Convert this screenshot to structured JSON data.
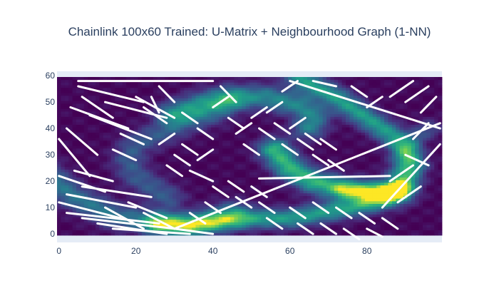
{
  "chart_data": {
    "type": "heatmap",
    "title": "Chainlink 100x60 Trained: U-Matrix + Neighbourhood Graph (1-NN)",
    "xlabel": "",
    "ylabel": "",
    "grid_size": [
      100,
      60
    ],
    "xlim": [
      -0.5,
      99.5
    ],
    "ylim": [
      -0.5,
      59.5
    ],
    "x_ticks": [
      0,
      20,
      40,
      60,
      80
    ],
    "y_ticks": [
      0,
      10,
      20,
      30,
      40,
      50,
      60
    ],
    "colorscale": "Viridis",
    "colors": {
      "low": "#440154",
      "mid": "#21918c",
      "high": "#fde725",
      "edge": "#ffffff",
      "plot_bg": "#e5ecf6",
      "text": "#2a3f5f"
    },
    "umatrix_ridges": [
      {
        "points": [
          [
            -6,
            26
          ],
          [
            4,
            14
          ],
          [
            14,
            7
          ],
          [
            26,
            4
          ],
          [
            34,
            4
          ],
          [
            40,
            6
          ],
          [
            45,
            8
          ]
        ],
        "width": 3.2,
        "peak": 0.42
      },
      {
        "points": [
          [
            26,
            4
          ],
          [
            34,
            3
          ],
          [
            44,
            5
          ],
          [
            52,
            6
          ],
          [
            60,
            6
          ],
          [
            68,
            8
          ],
          [
            76,
            10
          ],
          [
            84,
            13
          ],
          [
            90,
            20
          ],
          [
            92,
            26
          ],
          [
            90,
            32
          ],
          [
            86,
            38
          ],
          [
            80,
            44
          ],
          [
            76,
            48
          ],
          [
            72,
            52
          ],
          [
            68,
            55
          ],
          [
            64,
            58
          ],
          [
            60,
            63
          ]
        ],
        "width": 2.6,
        "peak": 0.6
      },
      {
        "points": [
          [
            30,
            46
          ],
          [
            38,
            50
          ],
          [
            46,
            52
          ],
          [
            54,
            52
          ],
          [
            62,
            49
          ],
          [
            66,
            45
          ],
          [
            65,
            41
          ]
        ],
        "width": 3.2,
        "peak": 0.5
      },
      {
        "points": [
          [
            44,
            50
          ],
          [
            40,
            46
          ],
          [
            32,
            42
          ],
          [
            26,
            38
          ],
          [
            20,
            34
          ],
          [
            18,
            28
          ],
          [
            20,
            22
          ],
          [
            24,
            18
          ],
          [
            28,
            14
          ]
        ],
        "width": 3.2,
        "peak": 0.3
      },
      {
        "points": [
          [
            56,
            32
          ],
          [
            60,
            25
          ],
          [
            66,
            20
          ],
          [
            74,
            17
          ],
          [
            82,
            16
          ],
          [
            88,
            16
          ]
        ],
        "width": 3.0,
        "peak": 0.72
      },
      {
        "points": [
          [
            74,
            17
          ],
          [
            82,
            16
          ],
          [
            86,
            16
          ],
          [
            88,
            17
          ]
        ],
        "width": 2.0,
        "peak": 0.28
      },
      {
        "points": [
          [
            88,
            24
          ],
          [
            92,
            36
          ],
          [
            96,
            40
          ]
        ],
        "width": 2.4,
        "peak": 0.25
      }
    ],
    "graph_edges": [
      [
        [
          5,
          56
        ],
        [
          22,
          50
        ]
      ],
      [
        [
          6,
          52
        ],
        [
          14,
          44
        ]
      ],
      [
        [
          3,
          48
        ],
        [
          18,
          40
        ]
      ],
      [
        [
          8,
          45
        ],
        [
          24,
          36
        ]
      ],
      [
        [
          12,
          50
        ],
        [
          28,
          44
        ]
      ],
      [
        [
          20,
          52
        ],
        [
          30,
          44
        ]
      ],
      [
        [
          2,
          40
        ],
        [
          10,
          30
        ]
      ],
      [
        [
          0,
          36
        ],
        [
          8,
          22
        ]
      ],
      [
        [
          4,
          24
        ],
        [
          14,
          20
        ]
      ],
      [
        [
          0,
          22
        ],
        [
          12,
          16
        ]
      ],
      [
        [
          2,
          15
        ],
        [
          20,
          10
        ]
      ],
      [
        [
          0,
          12
        ],
        [
          16,
          6
        ]
      ],
      [
        [
          2,
          8
        ],
        [
          26,
          4
        ]
      ],
      [
        [
          6,
          6
        ],
        [
          30,
          2
        ]
      ],
      [
        [
          10,
          4
        ],
        [
          28,
          0
        ]
      ],
      [
        [
          14,
          2
        ],
        [
          34,
          0
        ]
      ],
      [
        [
          18,
          12
        ],
        [
          28,
          6
        ]
      ],
      [
        [
          22,
          8
        ],
        [
          30,
          2
        ]
      ],
      [
        [
          12,
          10
        ],
        [
          22,
          2
        ]
      ],
      [
        [
          6,
          18
        ],
        [
          24,
          14
        ]
      ],
      [
        [
          24,
          52
        ],
        [
          26,
          46
        ]
      ],
      [
        [
          22,
          48
        ],
        [
          28,
          42
        ]
      ],
      [
        [
          26,
          56
        ],
        [
          30,
          50
        ]
      ],
      [
        [
          16,
          38
        ],
        [
          22,
          34
        ]
      ],
      [
        [
          14,
          32
        ],
        [
          20,
          28
        ]
      ],
      [
        [
          30,
          30
        ],
        [
          34,
          26
        ]
      ],
      [
        [
          32,
          34
        ],
        [
          36,
          30
        ]
      ],
      [
        [
          34,
          24
        ],
        [
          40,
          20
        ]
      ],
      [
        [
          40,
          48
        ],
        [
          44,
          52
        ]
      ],
      [
        [
          42,
          56
        ],
        [
          46,
          50
        ]
      ],
      [
        [
          44,
          44
        ],
        [
          48,
          40
        ]
      ],
      [
        [
          46,
          38
        ],
        [
          50,
          42
        ]
      ],
      [
        [
          48,
          34
        ],
        [
          52,
          30
        ]
      ],
      [
        [
          50,
          44
        ],
        [
          54,
          48
        ]
      ],
      [
        [
          52,
          40
        ],
        [
          56,
          36
        ]
      ],
      [
        [
          54,
          46
        ],
        [
          58,
          50
        ]
      ],
      [
        [
          56,
          42
        ],
        [
          60,
          38
        ]
      ],
      [
        [
          58,
          34
        ],
        [
          62,
          30
        ]
      ],
      [
        [
          60,
          40
        ],
        [
          64,
          44
        ]
      ],
      [
        [
          62,
          36
        ],
        [
          66,
          32
        ]
      ],
      [
        [
          64,
          38
        ],
        [
          68,
          34
        ]
      ],
      [
        [
          66,
          30
        ],
        [
          70,
          26
        ]
      ],
      [
        [
          68,
          36
        ],
        [
          72,
          32
        ]
      ],
      [
        [
          70,
          28
        ],
        [
          74,
          24
        ]
      ],
      [
        [
          44,
          20
        ],
        [
          48,
          16
        ]
      ],
      [
        [
          46,
          14
        ],
        [
          50,
          10
        ]
      ],
      [
        [
          50,
          18
        ],
        [
          54,
          14
        ]
      ],
      [
        [
          52,
          12
        ],
        [
          56,
          8
        ]
      ],
      [
        [
          54,
          6
        ],
        [
          58,
          2
        ]
      ],
      [
        [
          60,
          10
        ],
        [
          64,
          6
        ]
      ],
      [
        [
          62,
          4
        ],
        [
          66,
          0
        ]
      ],
      [
        [
          66,
          12
        ],
        [
          70,
          8
        ]
      ],
      [
        [
          68,
          4
        ],
        [
          72,
          0
        ]
      ],
      [
        [
          72,
          10
        ],
        [
          76,
          6
        ]
      ],
      [
        [
          74,
          2
        ],
        [
          78,
          -2
        ]
      ],
      [
        [
          78,
          8
        ],
        [
          82,
          4
        ]
      ],
      [
        [
          80,
          2
        ],
        [
          84,
          -1
        ]
      ],
      [
        [
          84,
          6
        ],
        [
          88,
          2
        ]
      ],
      [
        [
          86,
          20
        ],
        [
          92,
          26
        ]
      ],
      [
        [
          88,
          12
        ],
        [
          94,
          18
        ]
      ],
      [
        [
          90,
          30
        ],
        [
          96,
          26
        ]
      ],
      [
        [
          92,
          36
        ],
        [
          96,
          42
        ]
      ],
      [
        [
          94,
          46
        ],
        [
          98,
          52
        ]
      ],
      [
        [
          90,
          50
        ],
        [
          96,
          56
        ]
      ],
      [
        [
          86,
          52
        ],
        [
          92,
          58
        ]
      ],
      [
        [
          80,
          48
        ],
        [
          84,
          52
        ]
      ],
      [
        [
          76,
          56
        ],
        [
          80,
          52
        ]
      ],
      [
        [
          58,
          54
        ],
        [
          62,
          58
        ]
      ],
      [
        [
          66,
          58
        ],
        [
          72,
          56
        ]
      ],
      [
        [
          30,
          2
        ],
        [
          40,
          0
        ]
      ],
      [
        [
          34,
          8
        ],
        [
          38,
          4
        ]
      ],
      [
        [
          38,
          12
        ],
        [
          42,
          8
        ]
      ],
      [
        [
          40,
          18
        ],
        [
          44,
          14
        ]
      ],
      [
        [
          36,
          28
        ],
        [
          40,
          32
        ]
      ],
      [
        [
          28,
          26
        ],
        [
          32,
          22
        ]
      ],
      [
        [
          26,
          34
        ],
        [
          30,
          38
        ]
      ],
      [
        [
          36,
          40
        ],
        [
          40,
          36
        ]
      ],
      [
        [
          32,
          46
        ],
        [
          36,
          42
        ]
      ]
    ],
    "long_edges": [
      [
        [
          5,
          58
        ],
        [
          40,
          58
        ]
      ],
      [
        [
          60,
          58
        ],
        [
          99,
          40
        ]
      ],
      [
        [
          30,
          2
        ],
        [
          99,
          42
        ]
      ],
      [
        [
          52,
          21
        ],
        [
          86,
          22
        ]
      ],
      [
        [
          84,
          10
        ],
        [
          99,
          34
        ]
      ]
    ]
  }
}
